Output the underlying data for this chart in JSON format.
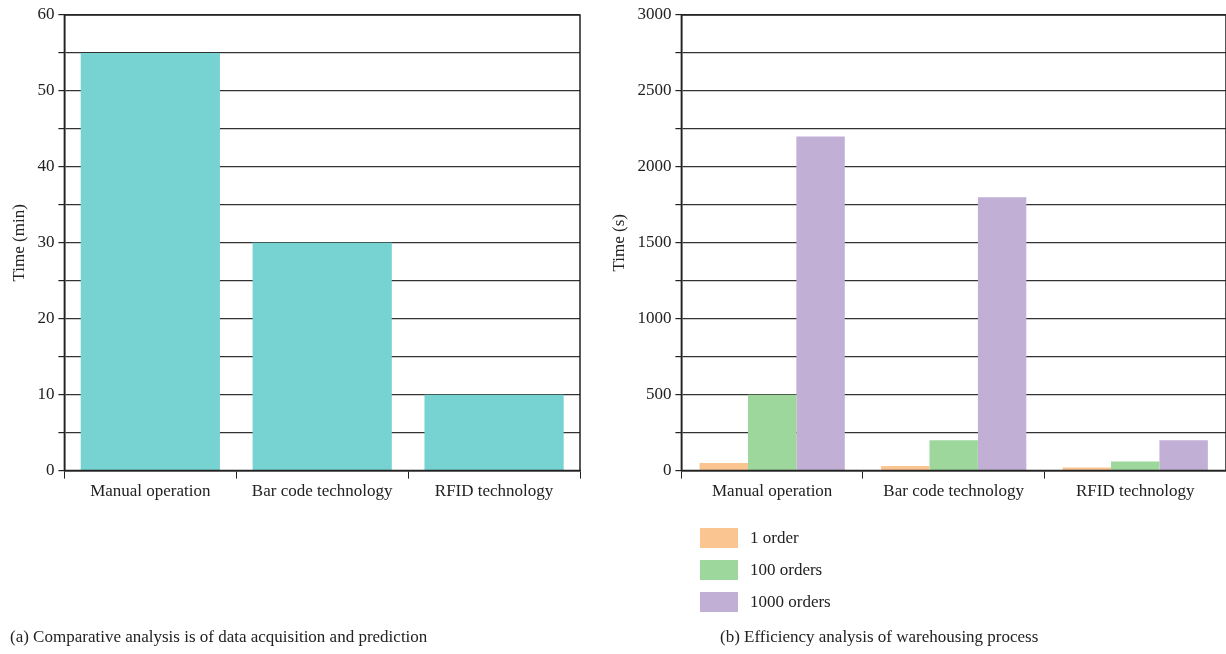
{
  "chart_data": [
    {
      "type": "bar",
      "ylabel": "Time (min)",
      "categories": [
        "Manual operation",
        "Bar code technology",
        "RFID technology"
      ],
      "series": [
        {
          "color": "#76d3d2",
          "values": [
            55,
            30,
            10
          ]
        }
      ],
      "ylim": [
        0,
        60
      ],
      "yticks": [
        0,
        {
          "value": 5,
          "label": null
        },
        10,
        {
          "value": 15,
          "label": null
        },
        20,
        {
          "value": 25,
          "label": null
        },
        30,
        {
          "value": 35,
          "label": null
        },
        40,
        {
          "value": 45,
          "label": null
        },
        50,
        {
          "value": 55,
          "label": null
        },
        60
      ],
      "grid": "y",
      "legend": false,
      "annotations": [
        "(a) Comparative analysis is of data acquisition and prediction"
      ]
    },
    {
      "type": "bar",
      "ylabel": "Time (s)",
      "categories": [
        "Manual operation",
        "Bar code technology",
        "RFID technology"
      ],
      "series": [
        {
          "name": "1 order",
          "color": "#fbc592",
          "values": [
            50,
            30,
            20
          ]
        },
        {
          "name": "100 orders",
          "color": "#9dd79b",
          "values": [
            500,
            200,
            60
          ]
        },
        {
          "name": "1000 orders",
          "color": "#c1afd5",
          "values": [
            2200,
            1800,
            200
          ]
        }
      ],
      "ylim": [
        0,
        3000
      ],
      "yticks": [
        0,
        {
          "value": 250,
          "label": null
        },
        500,
        {
          "value": 750,
          "label": null
        },
        1000,
        {
          "value": 1250,
          "label": null
        },
        1500,
        {
          "value": 1750,
          "label": null
        },
        2000,
        {
          "value": 2250,
          "label": null
        },
        2500,
        {
          "value": 2750,
          "label": null
        },
        3000
      ],
      "grid": "y",
      "legend": "bottom left",
      "annotations": [
        "(b) Efficiency analysis of warehousing process"
      ]
    }
  ]
}
